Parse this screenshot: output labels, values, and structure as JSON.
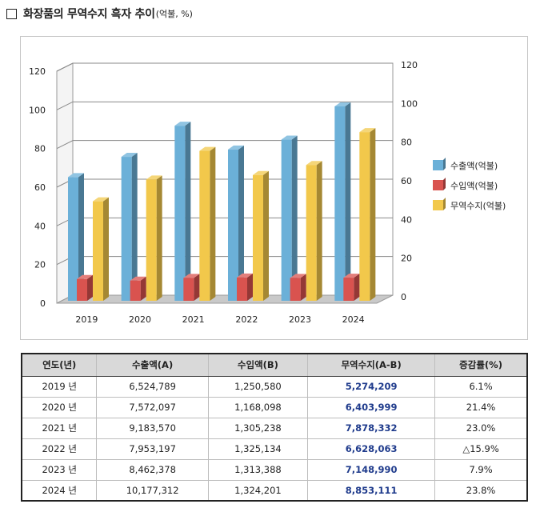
{
  "header": {
    "title": "화장품의 무역수지 흑자 추이",
    "unit": "(억불, %)"
  },
  "chart_data": {
    "type": "bar",
    "categories": [
      "2019",
      "2020",
      "2021",
      "2022",
      "2023",
      "2024"
    ],
    "series": [
      {
        "name": "수출액(억불)",
        "color": "#6bb0d8",
        "values": [
          65.2,
          75.7,
          91.8,
          79.5,
          84.6,
          101.8
        ]
      },
      {
        "name": "수입액(억불)",
        "color": "#d9534f",
        "values": [
          12.5,
          11.7,
          13.1,
          13.3,
          13.1,
          13.2
        ]
      },
      {
        "name": "무역수지(억불)",
        "color": "#f2c84b",
        "values": [
          52.7,
          64.0,
          78.8,
          66.3,
          71.5,
          88.5
        ]
      }
    ],
    "y_ticks": [
      "0",
      "20",
      "40",
      "60",
      "80",
      "100",
      "120"
    ],
    "y2_ticks": [
      "0",
      "20",
      "40",
      "60",
      "80",
      "100",
      "120"
    ],
    "ylim": [
      0,
      120
    ],
    "y2lim": [
      0,
      120
    ],
    "grid": true,
    "legend_position": "right",
    "style": "3d-column"
  },
  "table": {
    "headers": [
      "연도(년)",
      "수출액(A)",
      "수입액(B)",
      "무역수지(A-B)",
      "증감률(%)"
    ],
    "rows": [
      [
        "2019 년",
        "6,524,789",
        "1,250,580",
        "5,274,209",
        "6.1%"
      ],
      [
        "2020 년",
        "7,572,097",
        "1,168,098",
        "6,403,999",
        "21.4%"
      ],
      [
        "2021 년",
        "9,183,570",
        "1,305,238",
        "7,878,332",
        "23.0%"
      ],
      [
        "2022 년",
        "7,953,197",
        "1,325,134",
        "6,628,063",
        "△15.9%"
      ],
      [
        "2023 년",
        "8,462,378",
        "1,313,388",
        "7,148,990",
        "7.9%"
      ],
      [
        "2024 년",
        "10,177,312",
        "1,324,201",
        "8,853,111",
        "23.8%"
      ]
    ]
  }
}
